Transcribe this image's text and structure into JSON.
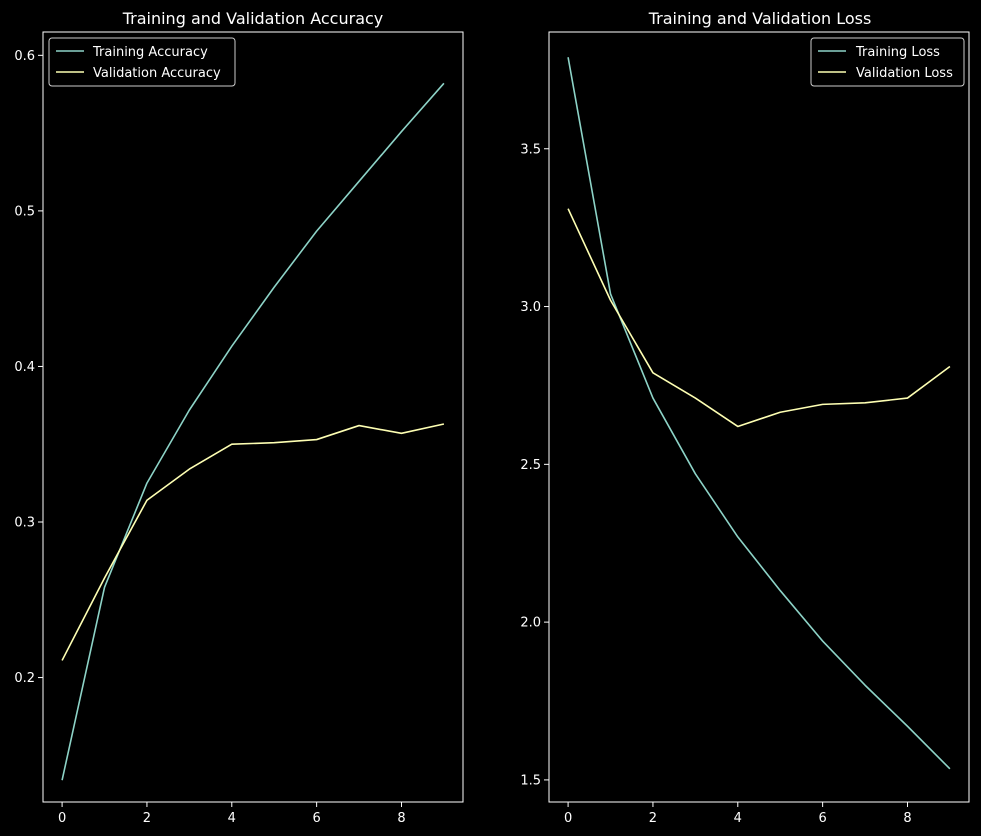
{
  "colors": {
    "background": "#000000",
    "foreground": "#ffffff",
    "series_training": "#8dd3c7",
    "series_validation": "#feffb3"
  },
  "chart_data": [
    {
      "type": "line",
      "title": "Training and Validation Accuracy",
      "xlabel": "",
      "ylabel": "",
      "xlim": [
        -0.45,
        9.45
      ],
      "ylim": [
        0.12,
        0.615
      ],
      "xticks": [
        0,
        2,
        4,
        6,
        8
      ],
      "yticks": [
        0.2,
        0.3,
        0.4,
        0.5,
        0.6
      ],
      "xtick_labels": [
        "0",
        "2",
        "4",
        "6",
        "8"
      ],
      "ytick_labels": [
        "0.2",
        "0.3",
        "0.4",
        "0.5",
        "0.6"
      ],
      "grid": false,
      "legend_position": "upper-left",
      "x": [
        0,
        1,
        2,
        3,
        4,
        5,
        6,
        7,
        8,
        9
      ],
      "series": [
        {
          "name": "Training Accuracy",
          "color": "#8dd3c7",
          "values": [
            0.134,
            0.258,
            0.325,
            0.372,
            0.413,
            0.451,
            0.487,
            0.519,
            0.551,
            0.582
          ]
        },
        {
          "name": "Validation Accuracy",
          "color": "#feffb3",
          "values": [
            0.211,
            0.264,
            0.314,
            0.334,
            0.35,
            0.351,
            0.353,
            0.362,
            0.357,
            0.363
          ]
        }
      ]
    },
    {
      "type": "line",
      "title": "Training and Validation Loss",
      "xlabel": "",
      "ylabel": "",
      "xlim": [
        -0.45,
        9.45
      ],
      "ylim": [
        1.43,
        3.87
      ],
      "xticks": [
        0,
        2,
        4,
        6,
        8
      ],
      "yticks": [
        1.5,
        2.0,
        2.5,
        3.0,
        3.5
      ],
      "xtick_labels": [
        "0",
        "2",
        "4",
        "6",
        "8"
      ],
      "ytick_labels": [
        "1.5",
        "2.0",
        "2.5",
        "3.0",
        "3.5"
      ],
      "grid": false,
      "legend_position": "upper-right",
      "x": [
        0,
        1,
        2,
        3,
        4,
        5,
        6,
        7,
        8,
        9
      ],
      "series": [
        {
          "name": "Training Loss",
          "color": "#8dd3c7",
          "values": [
            3.79,
            3.04,
            2.71,
            2.47,
            2.27,
            2.1,
            1.94,
            1.8,
            1.67,
            1.535
          ]
        },
        {
          "name": "Validation Loss",
          "color": "#feffb3",
          "values": [
            3.31,
            3.02,
            2.79,
            2.71,
            2.62,
            2.665,
            2.69,
            2.695,
            2.71,
            2.81
          ]
        }
      ]
    }
  ]
}
